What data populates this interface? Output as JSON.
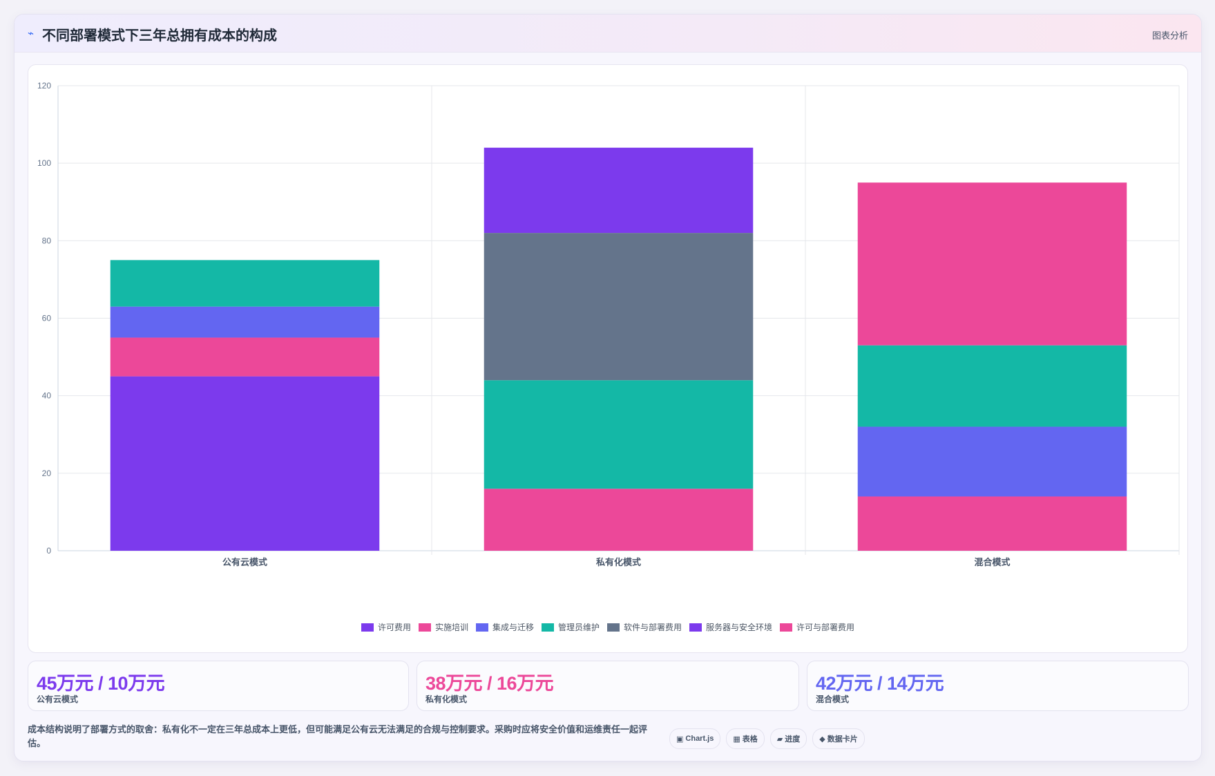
{
  "header": {
    "icon": "bolt-icon",
    "title": "不同部署模式下三年总拥有成本的构成",
    "action_label": "图表分析"
  },
  "chart_data": {
    "type": "bar",
    "stacked": true,
    "categories": [
      "公有云模式",
      "私有化模式",
      "混合模式"
    ],
    "ylim": [
      0,
      120
    ],
    "yticks": [
      0,
      20,
      40,
      60,
      80,
      100,
      120
    ],
    "grid": true,
    "legend_position": "bottom",
    "series": [
      {
        "name": "许可费用",
        "color": "#7c3aed",
        "values": [
          45,
          0,
          0
        ]
      },
      {
        "name": "实施培训",
        "color": "#ec4899",
        "values": [
          10,
          16,
          14
        ]
      },
      {
        "name": "集成与迁移",
        "color": "#6366f1",
        "values": [
          8,
          0,
          18
        ]
      },
      {
        "name": "管理员维护",
        "color": "#14b8a6",
        "values": [
          12,
          28,
          21
        ]
      },
      {
        "name": "软件与部署费用",
        "color": "#64748b",
        "values": [
          0,
          38,
          0
        ]
      },
      {
        "name": "服务器与安全环境",
        "color": "#7c3aed",
        "values": [
          0,
          22,
          0
        ]
      },
      {
        "name": "许可与部署费用",
        "color": "#ec4899",
        "values": [
          0,
          0,
          42
        ]
      }
    ]
  },
  "stats": [
    {
      "value": "45万元 / 10万元",
      "label": "公有云模式",
      "color": "#7c3aed"
    },
    {
      "value": "38万元 / 16万元",
      "label": "私有化模式",
      "color": "#ec4899"
    },
    {
      "value": "42万元 / 14万元",
      "label": "混合模式",
      "color": "#6366f1"
    }
  ],
  "footnote": "成本结构说明了部署方式的取舍：私有化不一定在三年总成本上更低，但可能满足公有云无法满足的合规与控制要求。采购时应将安全价值和运维责任一起评估。",
  "tags": [
    {
      "glyph": "▣",
      "label": "Chart.js"
    },
    {
      "glyph": "▦",
      "label": "表格"
    },
    {
      "glyph": "▰",
      "label": "进度"
    },
    {
      "glyph": "◆",
      "label": "数据卡片"
    }
  ]
}
